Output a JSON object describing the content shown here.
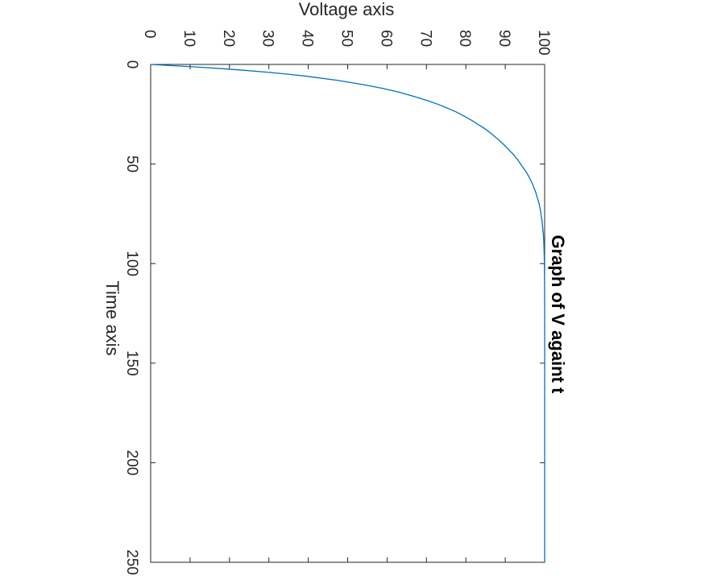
{
  "chart_data": {
    "type": "line",
    "title": "Graph of V againt t",
    "xlabel": "Time axis",
    "ylabel": "Voltage axis",
    "xlim": [
      0,
      250
    ],
    "ylim": [
      0,
      100
    ],
    "x_ticks": [
      0,
      50,
      100,
      150,
      200,
      250
    ],
    "y_ticks": [
      0,
      10,
      20,
      30,
      40,
      50,
      60,
      70,
      80,
      90,
      100
    ],
    "grid": false,
    "series": [
      {
        "color": "#0072bd",
        "x": [
          0,
          1,
          2,
          3,
          4,
          5,
          6,
          8,
          10,
          12,
          14,
          16,
          18,
          20,
          22,
          24,
          26,
          28,
          30,
          32,
          34,
          36,
          38,
          40,
          42,
          44,
          46,
          48,
          50,
          52,
          54,
          56,
          58,
          60,
          62,
          64,
          66,
          68,
          70,
          72,
          74,
          76,
          78,
          80,
          82,
          84,
          86,
          88,
          90,
          95,
          100,
          105,
          110,
          115,
          120,
          122,
          130,
          140,
          150,
          160,
          170,
          180,
          190,
          200,
          210,
          220,
          230,
          240,
          250
        ],
        "y": [
          0,
          9.2,
          17.3,
          24.2,
          30.2,
          35.4,
          39.9,
          47.4,
          53.6,
          58.8,
          63.2,
          66.7,
          70.0,
          72.9,
          75.4,
          77.7,
          79.6,
          81.4,
          83.0,
          84.6,
          86.0,
          87.2,
          88.4,
          89.5,
          90.5,
          91.5,
          92.4,
          93.2,
          93.9,
          94.6,
          95.3,
          95.9,
          96.4,
          96.9,
          97.3,
          97.7,
          98.0,
          98.3,
          98.6,
          98.8,
          99.0,
          99.1,
          99.3,
          99.4,
          99.5,
          99.6,
          99.7,
          99.75,
          99.8,
          99.88,
          99.93,
          99.96,
          99.97,
          99.98,
          99.99,
          100,
          100,
          100,
          100,
          100,
          100,
          100,
          100,
          100,
          100,
          100,
          100,
          100,
          100
        ]
      }
    ]
  }
}
